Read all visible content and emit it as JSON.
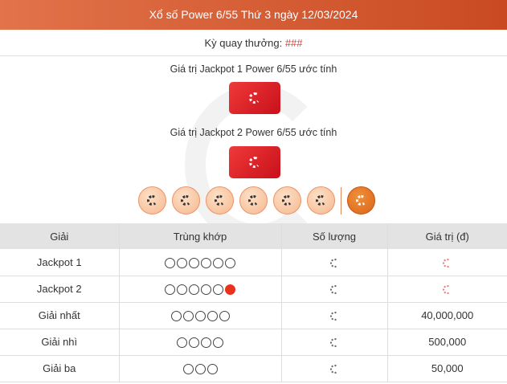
{
  "header": {
    "title": "Xổ số Power 6/55 Thứ 3 ngày 12/03/2024"
  },
  "draw": {
    "label": "Kỳ quay thưởng: ",
    "value": "###"
  },
  "jackpot1": {
    "label": "Giá trị Jackpot 1 Power 6/55 ước tính",
    "state": "loading"
  },
  "jackpot2": {
    "label": "Giá trị Jackpot 2 Power 6/55 ước tính",
    "state": "loading"
  },
  "balls": {
    "main_count": 6,
    "power_count": 1,
    "state": "loading"
  },
  "colors": {
    "header": "#d45a30",
    "jackpot": "#e02a2a",
    "ball": "#f8c8a4",
    "power_ball": "#e07020",
    "match_red": "#e8321e"
  },
  "table": {
    "headers": [
      "Giải",
      "Trùng khớp",
      "Số lượng",
      "Giá trị (đ)"
    ],
    "rows": [
      {
        "prize": "Jackpot 1",
        "match": 6,
        "power": false,
        "count": "loading",
        "value": "",
        "value_loading": true
      },
      {
        "prize": "Jackpot 2",
        "match": 5,
        "power": true,
        "count": "loading",
        "value": "",
        "value_loading": true
      },
      {
        "prize": "Giải nhất",
        "match": 5,
        "power": false,
        "count": "loading",
        "value": "40,000,000"
      },
      {
        "prize": "Giải nhì",
        "match": 4,
        "power": false,
        "count": "loading",
        "value": "500,000"
      },
      {
        "prize": "Giải ba",
        "match": 3,
        "power": false,
        "count": "loading",
        "value": "50,000"
      }
    ]
  }
}
